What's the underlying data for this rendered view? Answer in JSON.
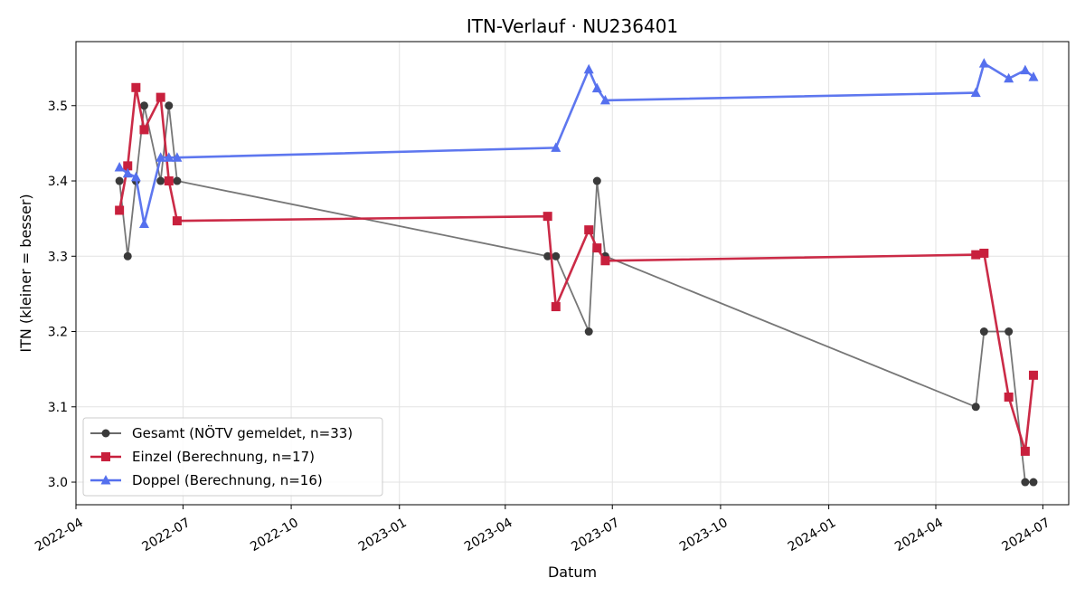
{
  "chart_data": {
    "type": "line",
    "title": "ITN-Verlauf · NU236401",
    "xlabel": "Datum",
    "ylabel": "ITN  (kleiner = besser)",
    "xlim": [
      "2022-04-01",
      "2024-07-23"
    ],
    "ylim": [
      2.97,
      3.585
    ],
    "grid": true,
    "legend_position": "lower-left",
    "x_ticks": [
      "2022-04",
      "2022-07",
      "2022-10",
      "2023-01",
      "2023-04",
      "2023-07",
      "2023-10",
      "2024-01",
      "2024-04",
      "2024-07"
    ],
    "y_ticks": [
      3.0,
      3.1,
      3.2,
      3.3,
      3.4,
      3.5
    ],
    "series": [
      {
        "name": "Gesamt (NÖTV gemeldet, n=33)",
        "color": "#555555",
        "marker": "circle",
        "points": [
          [
            "2022-05-08",
            3.4
          ],
          [
            "2022-05-15",
            3.3
          ],
          [
            "2022-05-22",
            3.4
          ],
          [
            "2022-05-29",
            3.5
          ],
          [
            "2022-06-12",
            3.4
          ],
          [
            "2022-06-19",
            3.5
          ],
          [
            "2022-06-26",
            3.4
          ],
          [
            "2023-05-07",
            3.3
          ],
          [
            "2023-05-14",
            3.3
          ],
          [
            "2023-06-11",
            3.2
          ],
          [
            "2023-06-18",
            3.4
          ],
          [
            "2023-06-25",
            3.3
          ],
          [
            "2024-05-05",
            3.1
          ],
          [
            "2024-05-12",
            3.2
          ],
          [
            "2024-06-02",
            3.2
          ],
          [
            "2024-06-16",
            3.0
          ],
          [
            "2024-06-23",
            3.0
          ]
        ]
      },
      {
        "name": "Einzel (Berechnung, n=17)",
        "color": "#c8203d",
        "marker": "square",
        "points": [
          [
            "2022-05-08",
            3.361
          ],
          [
            "2022-05-15",
            3.42
          ],
          [
            "2022-05-22",
            3.524
          ],
          [
            "2022-05-29",
            3.468
          ],
          [
            "2022-06-12",
            3.511
          ],
          [
            "2022-06-19",
            3.4
          ],
          [
            "2022-06-26",
            3.347
          ],
          [
            "2023-05-07",
            3.353
          ],
          [
            "2023-05-14",
            3.233
          ],
          [
            "2023-06-11",
            3.335
          ],
          [
            "2023-06-18",
            3.311
          ],
          [
            "2023-06-25",
            3.294
          ],
          [
            "2024-05-05",
            3.302
          ],
          [
            "2024-05-12",
            3.304
          ],
          [
            "2024-06-02",
            3.113
          ],
          [
            "2024-06-16",
            3.041
          ],
          [
            "2024-06-23",
            3.142
          ]
        ]
      },
      {
        "name": "Doppel (Berechnung, n=16)",
        "color": "#5570ee",
        "marker": "triangle",
        "points": [
          [
            "2022-05-08",
            3.418
          ],
          [
            "2022-05-15",
            3.41
          ],
          [
            "2022-05-22",
            3.405
          ],
          [
            "2022-05-29",
            3.343
          ],
          [
            "2022-06-12",
            3.431
          ],
          [
            "2022-06-19",
            3.431
          ],
          [
            "2022-06-26",
            3.431
          ],
          [
            "2023-05-14",
            3.444
          ],
          [
            "2023-06-11",
            3.548
          ],
          [
            "2023-06-18",
            3.523
          ],
          [
            "2023-06-25",
            3.507
          ],
          [
            "2024-05-05",
            3.517
          ],
          [
            "2024-05-12",
            3.556
          ],
          [
            "2024-06-02",
            3.536
          ],
          [
            "2024-06-16",
            3.547
          ],
          [
            "2024-06-23",
            3.538
          ]
        ]
      }
    ]
  }
}
